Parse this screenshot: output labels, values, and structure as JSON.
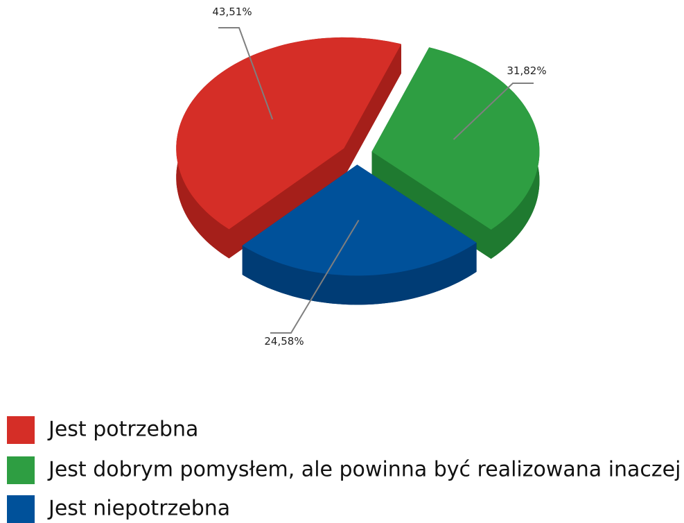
{
  "chart_data": {
    "type": "pie3d",
    "categories": [
      "Jest potrzebna",
      "Jest dobrym pomysłem, ale powinna być realizowana inaczej",
      "Jest niepotrzebna"
    ],
    "values": [
      43.51,
      31.82,
      24.58
    ],
    "value_labels": [
      "43,51%",
      "31,82%",
      "24,58%"
    ],
    "colors": [
      "#d52e27",
      "#2e9e42",
      "#00519a"
    ],
    "side_colors": [
      "#a51f1a",
      "#1f7a30",
      "#003c75"
    ]
  }
}
